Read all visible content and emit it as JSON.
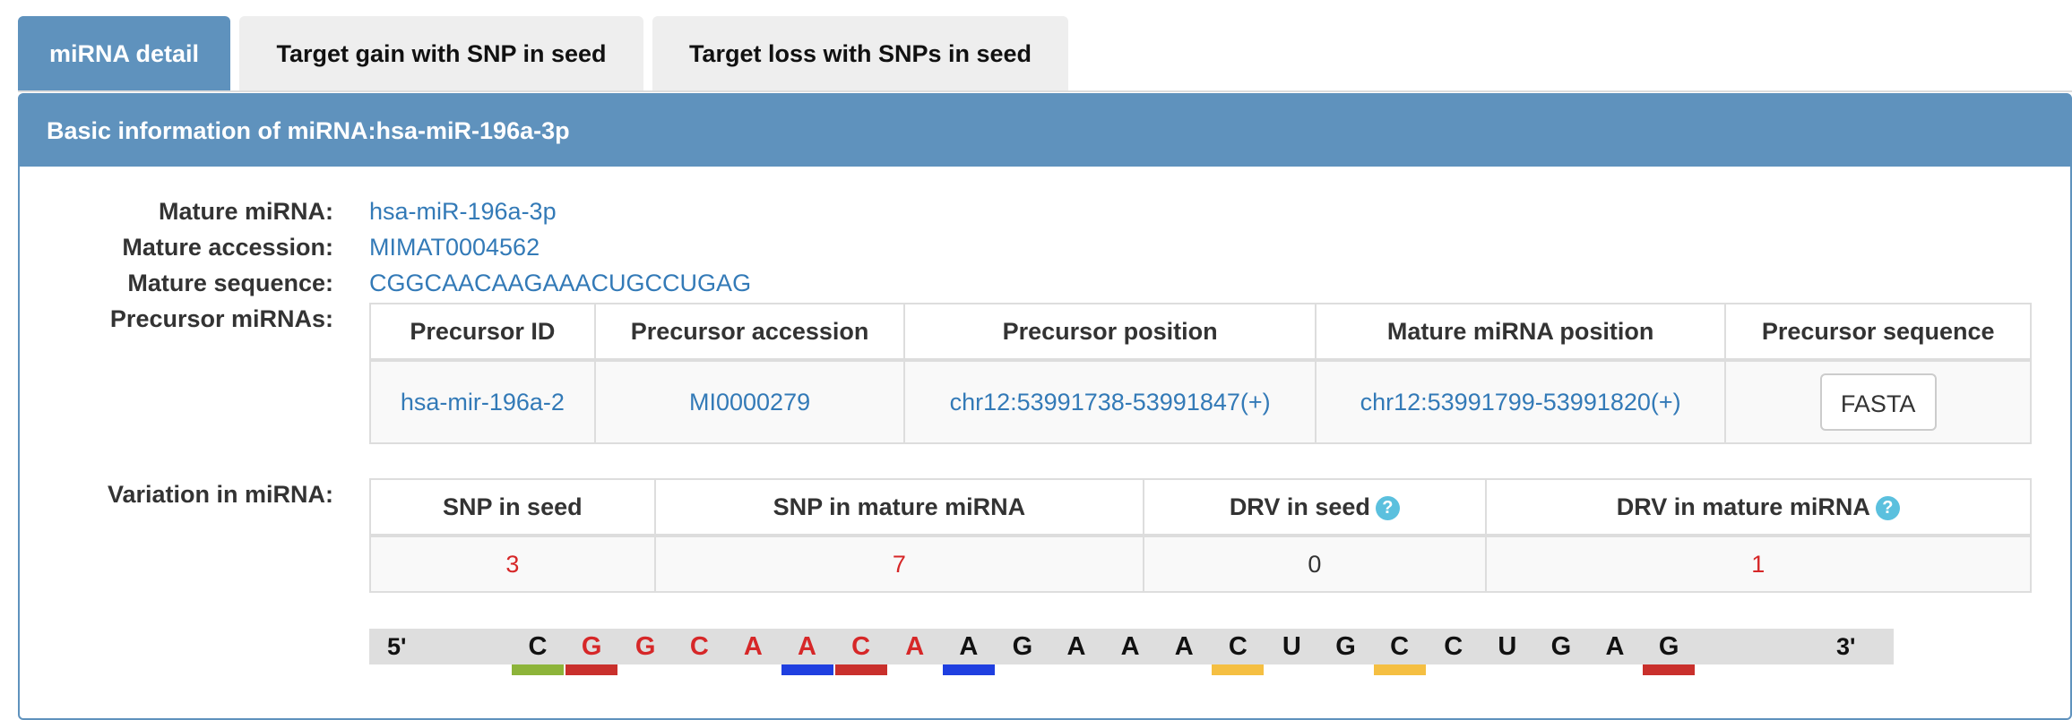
{
  "tabs": [
    {
      "label": "miRNA detail",
      "active": true
    },
    {
      "label": "Target gain with SNP in seed",
      "active": false
    },
    {
      "label": "Target loss with SNPs in seed",
      "active": false
    }
  ],
  "panel": {
    "title": "Basic information of miRNA:hsa-miR-196a-3p"
  },
  "info": {
    "mature_mirna_label": "Mature miRNA:",
    "mature_mirna": "hsa-miR-196a-3p",
    "mature_accession_label": "Mature accession:",
    "mature_accession": "MIMAT0004562",
    "mature_sequence_label": "Mature sequence:",
    "mature_sequence": "CGGCAACAAGAAACUGCCUGAG",
    "precursor_label": "Precursor miRNAs:",
    "variation_label": "Variation in miRNA:"
  },
  "precursor_table": {
    "headers": [
      "Precursor ID",
      "Precursor accession",
      "Precursor position",
      "Mature miRNA position",
      "Precursor sequence"
    ],
    "row": {
      "id": "hsa-mir-196a-2",
      "accession": "MI0000279",
      "position": "chr12:53991738-53991847(+)",
      "mature_position": "chr12:53991799-53991820(+)",
      "button": "FASTA"
    }
  },
  "variation_table": {
    "headers": [
      "SNP in seed",
      "SNP in mature miRNA",
      "DRV in seed",
      "DRV in mature miRNA"
    ],
    "help_icon": "?",
    "values": [
      "3",
      "7",
      "0",
      "1"
    ],
    "value_colors": [
      "#d62728",
      "#d62728",
      "#333333",
      "#d62728"
    ]
  },
  "sequence": {
    "five_prime": "5'",
    "three_prime": "3'",
    "nucleotides": [
      "C",
      "G",
      "G",
      "C",
      "A",
      "A",
      "C",
      "A",
      "A",
      "G",
      "A",
      "A",
      "A",
      "C",
      "U",
      "G",
      "C",
      "C",
      "U",
      "G",
      "A",
      "G"
    ],
    "nucleotide_colors": [
      "#111111",
      "#d62728",
      "#d62728",
      "#d62728",
      "#d62728",
      "#d62728",
      "#d62728",
      "#d62728",
      "#111111",
      "#111111",
      "#111111",
      "#111111",
      "#111111",
      "#111111",
      "#111111",
      "#111111",
      "#111111",
      "#111111",
      "#111111",
      "#111111",
      "#111111",
      "#111111"
    ],
    "markers": [
      {
        "index": 0,
        "color": "#8db43a"
      },
      {
        "index": 1,
        "color": "#c9302c"
      },
      {
        "index": 5,
        "color": "#1f3fe0"
      },
      {
        "index": 6,
        "color": "#c9302c"
      },
      {
        "index": 8,
        "color": "#1f3fe0"
      },
      {
        "index": 13,
        "color": "#f5bf42"
      },
      {
        "index": 16,
        "color": "#f5bf42"
      },
      {
        "index": 21,
        "color": "#c9302c"
      }
    ]
  }
}
